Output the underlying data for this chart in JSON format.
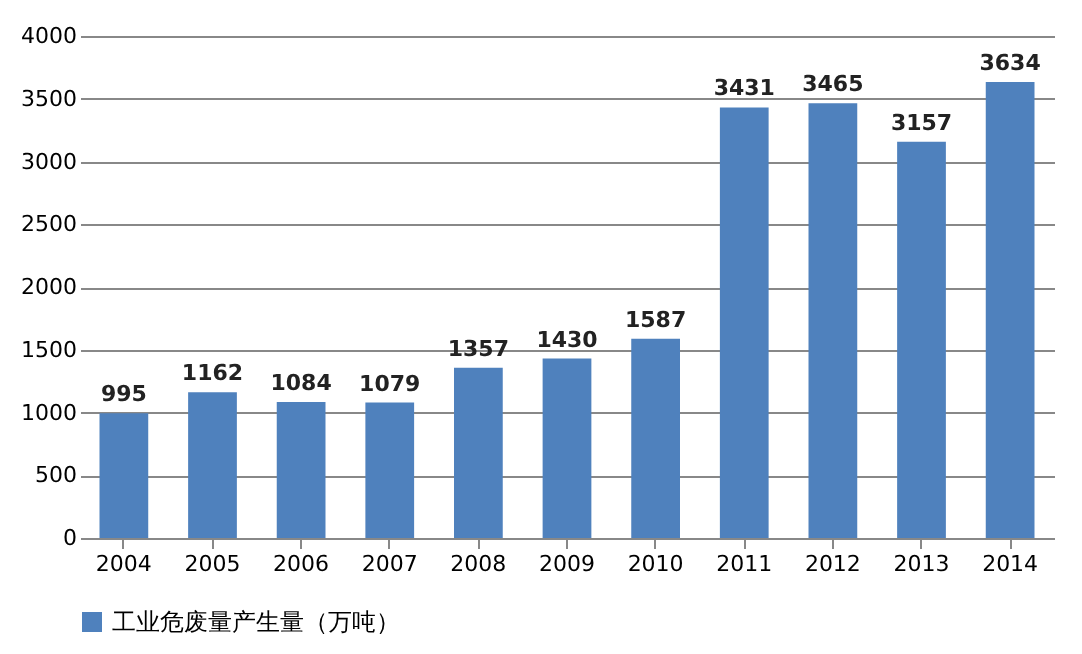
{
  "chart_data": {
    "type": "bar",
    "categories": [
      "2004",
      "2005",
      "2006",
      "2007",
      "2008",
      "2009",
      "2010",
      "2011",
      "2012",
      "2013",
      "2014"
    ],
    "series": [
      {
        "name": "工业危废量产生量（万吨）",
        "color": "#4f81bd",
        "values": [
          995,
          1162,
          1084,
          1079,
          1357,
          1430,
          1587,
          3431,
          3465,
          3157,
          3634
        ]
      }
    ],
    "ylim": [
      0,
      4000
    ],
    "yticks": [
      0,
      500,
      1000,
      1500,
      2000,
      2500,
      3000,
      3500,
      4000
    ],
    "grid": "y",
    "legend": "bottom",
    "data_labels": true
  }
}
